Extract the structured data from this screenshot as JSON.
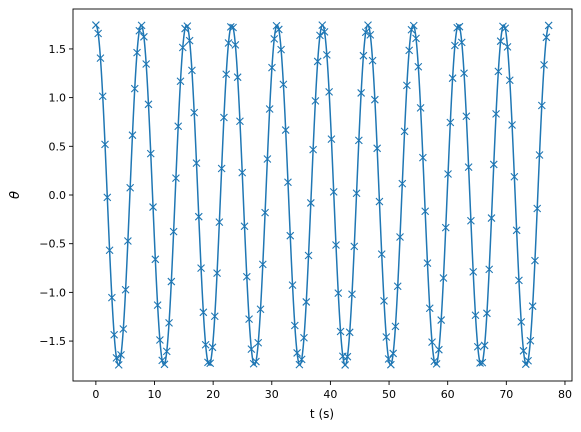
{
  "chart_data": {
    "type": "line",
    "title": "",
    "xlabel": "t (s)",
    "ylabel": "θ",
    "xlim": [
      -3.9,
      81.2
    ],
    "ylim": [
      -1.91,
      1.91
    ],
    "xticks": [
      0,
      10,
      20,
      30,
      40,
      50,
      60,
      70,
      80
    ],
    "xtick_labels": [
      "0",
      "10",
      "20",
      "30",
      "40",
      "50",
      "60",
      "70",
      "80"
    ],
    "yticks": [
      -1.5,
      -1.0,
      -0.5,
      0.0,
      0.5,
      1.0,
      1.5
    ],
    "ytick_labels": [
      "−1.5",
      "−1.0",
      "−0.5",
      "0.0",
      "0.5",
      "1.0",
      "1.5"
    ],
    "grid": false,
    "legend": "none",
    "series_color": "#1f77b4",
    "series": [
      {
        "style": "line",
        "function": "theta = 1.745 * cos(2*pi*t/7.73)",
        "amplitude": 1.745,
        "period": 7.73,
        "t_range": [
          0,
          77.3
        ]
      },
      {
        "style": "markers",
        "marker": "x",
        "function": "theta = 1.745 * cos(2*pi*t/7.73)",
        "amplitude": 1.745,
        "period": 7.73,
        "t_range": [
          0,
          77.3
        ],
        "t_step": 0.39
      }
    ]
  }
}
